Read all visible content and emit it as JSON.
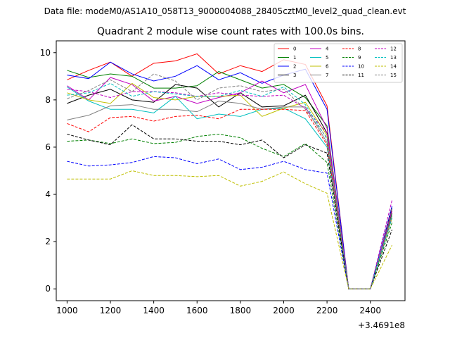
{
  "suptitle": "Data file: modeM0/AS1A10_058T13_9000004088_28405cztM0_level2_quad_clean.evt",
  "chart_data": {
    "type": "line",
    "title": "Quadrant 2 module wise count rates with 100.0s bins.",
    "xlabel": "",
    "ylabel": "",
    "x_offset_label": "+3.4691e8",
    "xlim": [
      950,
      2560
    ],
    "ylim": [
      -0.5,
      10.5
    ],
    "x_ticks": [
      1000,
      1200,
      1400,
      1600,
      1800,
      2000,
      2200,
      2400
    ],
    "y_ticks": [
      0,
      2,
      4,
      6,
      8,
      10
    ],
    "grid": false,
    "legend_position": "top-right",
    "legend_columns": 4,
    "x": [
      1000,
      1100,
      1200,
      1300,
      1400,
      1500,
      1600,
      1700,
      1800,
      1900,
      2000,
      2100,
      2200,
      2300,
      2400,
      2500
    ],
    "series": [
      {
        "name": "0",
        "color": "#ff0000",
        "dash": "solid",
        "values": [
          8.85,
          9.25,
          9.6,
          9.0,
          9.55,
          9.65,
          9.95,
          9.1,
          9.45,
          9.2,
          9.7,
          9.5,
          7.75,
          0.0,
          0.0,
          3.3
        ]
      },
      {
        "name": "1",
        "color": "#008000",
        "dash": "solid",
        "values": [
          9.25,
          8.95,
          9.1,
          9.0,
          8.5,
          8.5,
          8.6,
          9.2,
          8.85,
          8.5,
          8.65,
          8.1,
          6.9,
          0.0,
          0.0,
          3.2
        ]
      },
      {
        "name": "2",
        "color": "#0000ff",
        "dash": "solid",
        "values": [
          9.05,
          8.9,
          9.6,
          9.1,
          8.8,
          9.0,
          9.45,
          8.85,
          9.15,
          8.7,
          9.05,
          9.3,
          7.6,
          0.0,
          0.0,
          3.5
        ]
      },
      {
        "name": "3",
        "color": "#000000",
        "dash": "solid",
        "values": [
          7.85,
          8.2,
          8.45,
          8.0,
          7.9,
          8.65,
          8.5,
          7.7,
          8.3,
          7.7,
          7.75,
          8.2,
          6.6,
          0.0,
          0.0,
          3.4
        ]
      },
      {
        "name": "4",
        "color": "#c000c0",
        "dash": "solid",
        "values": [
          8.6,
          8.0,
          8.95,
          8.65,
          7.95,
          8.15,
          7.85,
          8.1,
          8.3,
          8.8,
          8.3,
          8.65,
          6.8,
          0.0,
          0.0,
          3.3
        ]
      },
      {
        "name": "5",
        "color": "#00bfbf",
        "dash": "solid",
        "values": [
          8.55,
          7.95,
          7.6,
          7.6,
          7.45,
          8.15,
          7.2,
          7.4,
          7.3,
          7.6,
          7.65,
          7.2,
          6.0,
          0.0,
          0.0,
          3.1
        ]
      },
      {
        "name": "6",
        "color": "#bfbf00",
        "dash": "solid",
        "values": [
          8.3,
          8.0,
          7.85,
          8.7,
          8.1,
          8.0,
          8.15,
          8.15,
          8.2,
          7.3,
          7.65,
          7.9,
          6.5,
          0.0,
          0.0,
          3.0
        ]
      },
      {
        "name": "7",
        "color": "#808080",
        "dash": "solid",
        "values": [
          7.15,
          7.35,
          7.75,
          7.8,
          7.6,
          7.6,
          7.5,
          7.95,
          7.85,
          7.6,
          7.7,
          7.7,
          6.2,
          0.0,
          0.0,
          3.1
        ]
      },
      {
        "name": "8",
        "color": "#ff0000",
        "dash": "dashed",
        "values": [
          7.0,
          6.65,
          7.25,
          7.3,
          7.1,
          7.3,
          7.35,
          7.2,
          7.6,
          7.6,
          7.6,
          7.55,
          6.1,
          0.0,
          0.0,
          3.0
        ]
      },
      {
        "name": "9",
        "color": "#008000",
        "dash": "dashed",
        "values": [
          6.25,
          6.3,
          6.15,
          6.35,
          6.15,
          6.2,
          6.45,
          6.55,
          6.4,
          5.95,
          5.6,
          6.15,
          5.35,
          0.0,
          0.0,
          2.8
        ]
      },
      {
        "name": "10",
        "color": "#0000ff",
        "dash": "dashed",
        "values": [
          5.4,
          5.2,
          5.25,
          5.35,
          5.6,
          5.55,
          5.3,
          5.5,
          5.05,
          5.15,
          5.4,
          5.05,
          4.9,
          0.0,
          0.0,
          3.5
        ]
      },
      {
        "name": "11",
        "color": "#000000",
        "dash": "dashed",
        "values": [
          6.55,
          6.3,
          6.1,
          6.95,
          6.35,
          6.35,
          6.25,
          6.25,
          6.1,
          6.3,
          5.55,
          6.1,
          5.75,
          0.0,
          0.0,
          2.5
        ]
      },
      {
        "name": "12",
        "color": "#c000c0",
        "dash": "dashed",
        "values": [
          8.45,
          8.35,
          8.1,
          8.35,
          8.35,
          8.3,
          8.15,
          8.3,
          8.2,
          8.15,
          8.2,
          7.65,
          6.6,
          0.0,
          0.0,
          3.75
        ]
      },
      {
        "name": "13",
        "color": "#00bfbf",
        "dash": "dashed",
        "values": [
          8.2,
          8.3,
          8.7,
          8.15,
          8.35,
          8.25,
          8.15,
          8.15,
          8.4,
          8.15,
          8.55,
          7.8,
          6.35,
          0.0,
          0.0,
          3.0
        ]
      },
      {
        "name": "14",
        "color": "#bfbf00",
        "dash": "dashed",
        "values": [
          4.65,
          4.65,
          4.65,
          5.0,
          4.8,
          4.8,
          4.75,
          4.8,
          4.35,
          4.55,
          4.95,
          4.45,
          4.05,
          0.0,
          0.0,
          1.85
        ]
      },
      {
        "name": "15",
        "color": "#808080",
        "dash": "dashed",
        "values": [
          8.05,
          8.4,
          8.85,
          8.35,
          9.1,
          8.8,
          8.0,
          8.5,
          8.6,
          8.35,
          8.45,
          7.6,
          6.4,
          0.0,
          0.0,
          3.45
        ]
      }
    ]
  }
}
